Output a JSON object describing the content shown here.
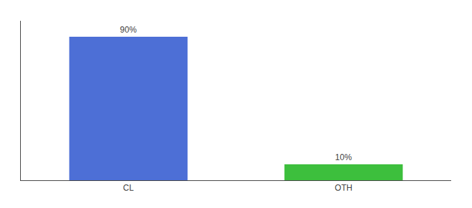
{
  "chart_data": {
    "type": "bar",
    "categories": [
      "CL",
      "OTH"
    ],
    "values": [
      90,
      10
    ],
    "value_labels": [
      "90%",
      "10%"
    ],
    "colors": [
      "#4d6fd6",
      "#3dbf3d"
    ],
    "ylim": [
      0,
      100
    ],
    "data_labels": true,
    "tick_labels": "x",
    "grid": false
  }
}
